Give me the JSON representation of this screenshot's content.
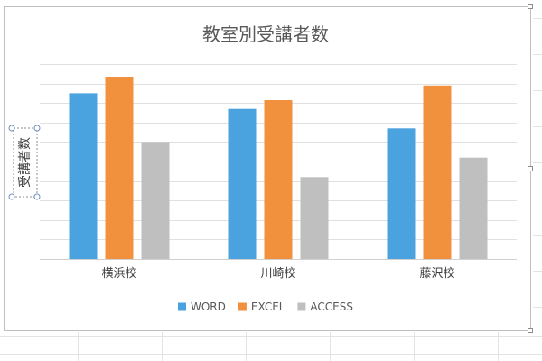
{
  "chart_data": {
    "type": "bar",
    "title": "教室別受講者数",
    "xlabel": "",
    "ylabel": "受講者数",
    "categories": [
      "横浜校",
      "川崎校",
      "藤沢校"
    ],
    "series": [
      {
        "name": "WORD",
        "values": [
          17,
          15.4,
          13.4
        ],
        "color": "#4aa3df"
      },
      {
        "name": "EXCEL",
        "values": [
          18.7,
          16.3,
          17.8
        ],
        "color": "#f2913d"
      },
      {
        "name": "ACCESS",
        "values": [
          12,
          8.4,
          10.4
        ],
        "color": "#bfbfbf"
      }
    ],
    "ylim": [
      0,
      20
    ],
    "grid": true,
    "gridline_count": 11,
    "legend_position": "bottom"
  }
}
